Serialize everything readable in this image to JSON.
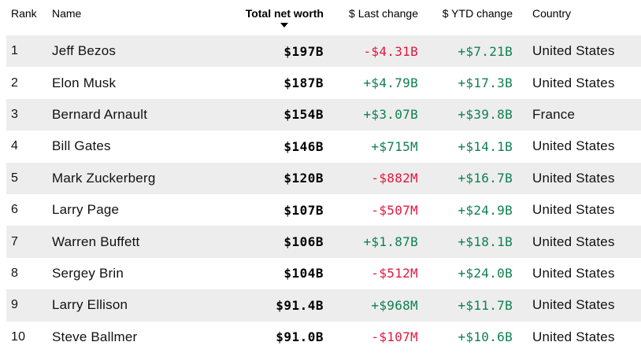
{
  "table": {
    "columns": [
      {
        "key": "rank",
        "label": "Rank"
      },
      {
        "key": "name",
        "label": "Name"
      },
      {
        "key": "net_worth",
        "label": "Total net worth",
        "sorted": "descending"
      },
      {
        "key": "last_change",
        "label": "$ Last change"
      },
      {
        "key": "ytd_change",
        "label": "$ YTD change"
      },
      {
        "key": "country",
        "label": "Country"
      }
    ],
    "sort_icon": "sort-desc-triangle",
    "rows": [
      {
        "rank": "1",
        "name": "Jeff Bezos",
        "net_worth": "$197B",
        "last_change": "-$4.31B",
        "ytd_change": "+$7.21B",
        "country": "United States"
      },
      {
        "rank": "2",
        "name": "Elon Musk",
        "net_worth": "$187B",
        "last_change": "+$4.79B",
        "ytd_change": "+$17.3B",
        "country": "United States"
      },
      {
        "rank": "3",
        "name": "Bernard Arnault",
        "net_worth": "$154B",
        "last_change": "+$3.07B",
        "ytd_change": "+$39.8B",
        "country": "France"
      },
      {
        "rank": "4",
        "name": "Bill Gates",
        "net_worth": "$146B",
        "last_change": "+$715M",
        "ytd_change": "+$14.1B",
        "country": "United States"
      },
      {
        "rank": "5",
        "name": "Mark Zuckerberg",
        "net_worth": "$120B",
        "last_change": "-$882M",
        "ytd_change": "+$16.7B",
        "country": "United States"
      },
      {
        "rank": "6",
        "name": "Larry Page",
        "net_worth": "$107B",
        "last_change": "-$507M",
        "ytd_change": "+$24.9B",
        "country": "United States"
      },
      {
        "rank": "7",
        "name": "Warren Buffett",
        "net_worth": "$106B",
        "last_change": "+$1.87B",
        "ytd_change": "+$18.1B",
        "country": "United States"
      },
      {
        "rank": "8",
        "name": "Sergey Brin",
        "net_worth": "$104B",
        "last_change": "-$512M",
        "ytd_change": "+$24.0B",
        "country": "United States"
      },
      {
        "rank": "9",
        "name": "Larry Ellison",
        "net_worth": "$91.4B",
        "last_change": "+$968M",
        "ytd_change": "+$11.7B",
        "country": "United States"
      },
      {
        "rank": "10",
        "name": "Steve Ballmer",
        "net_worth": "$91.0B",
        "last_change": "-$107M",
        "ytd_change": "+$10.6B",
        "country": "United States"
      }
    ]
  },
  "colors": {
    "positive": "#0e8150",
    "negative": "#e3173f",
    "stripe": "#ededed",
    "text": "#111111"
  }
}
